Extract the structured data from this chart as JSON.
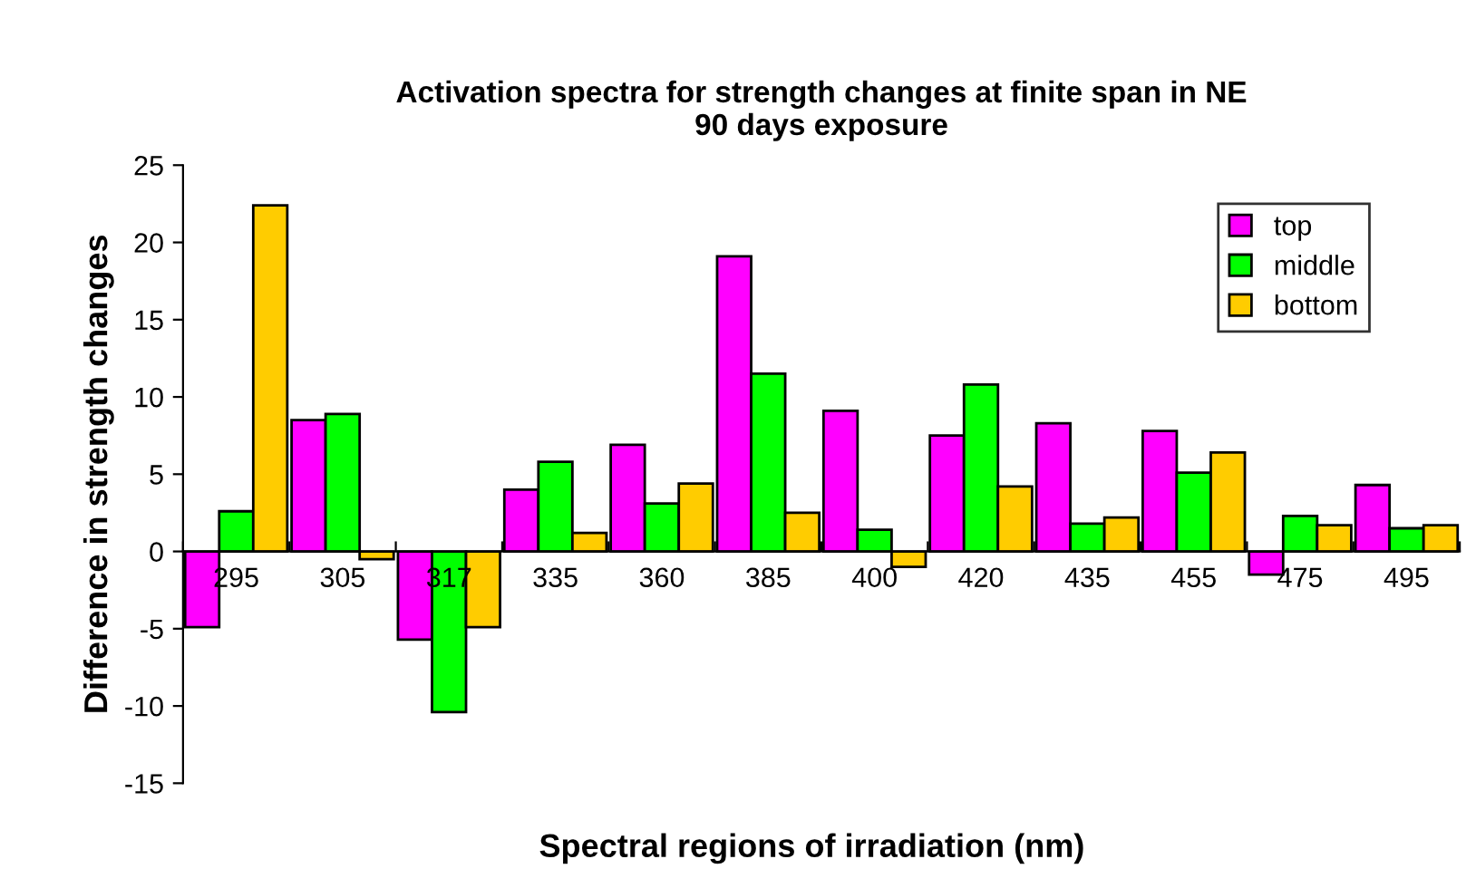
{
  "chart_data": {
    "type": "bar",
    "title": "Activation spectra for strength changes at finite span in NE\n90 days exposure",
    "xlabel": "Spectral regions of irradiation (nm)",
    "ylabel": "Difference in strength changes",
    "categories": [
      "295",
      "305",
      "317",
      "335",
      "360",
      "385",
      "400",
      "420",
      "435",
      "455",
      "475",
      "495"
    ],
    "series": [
      {
        "name": "top",
        "color": "#ff00ff",
        "values": [
          -4.9,
          8.5,
          -5.7,
          4.0,
          6.9,
          19.1,
          9.1,
          7.5,
          8.3,
          7.8,
          -1.5,
          4.3
        ]
      },
      {
        "name": "middle",
        "color": "#00ff00",
        "values": [
          2.6,
          8.9,
          -10.4,
          5.8,
          3.1,
          11.5,
          1.4,
          10.8,
          1.8,
          5.1,
          2.3,
          1.5
        ]
      },
      {
        "name": "bottom",
        "color": "#ffcc00",
        "values": [
          22.4,
          -0.5,
          -4.9,
          1.2,
          4.4,
          2.5,
          -1.0,
          4.2,
          2.2,
          6.4,
          1.7,
          1.7
        ]
      }
    ],
    "ylim": [
      -15,
      25
    ],
    "yticks": [
      -15,
      -10,
      -5,
      0,
      5,
      10,
      15,
      20,
      25
    ],
    "grid": false,
    "legend": "top right"
  }
}
